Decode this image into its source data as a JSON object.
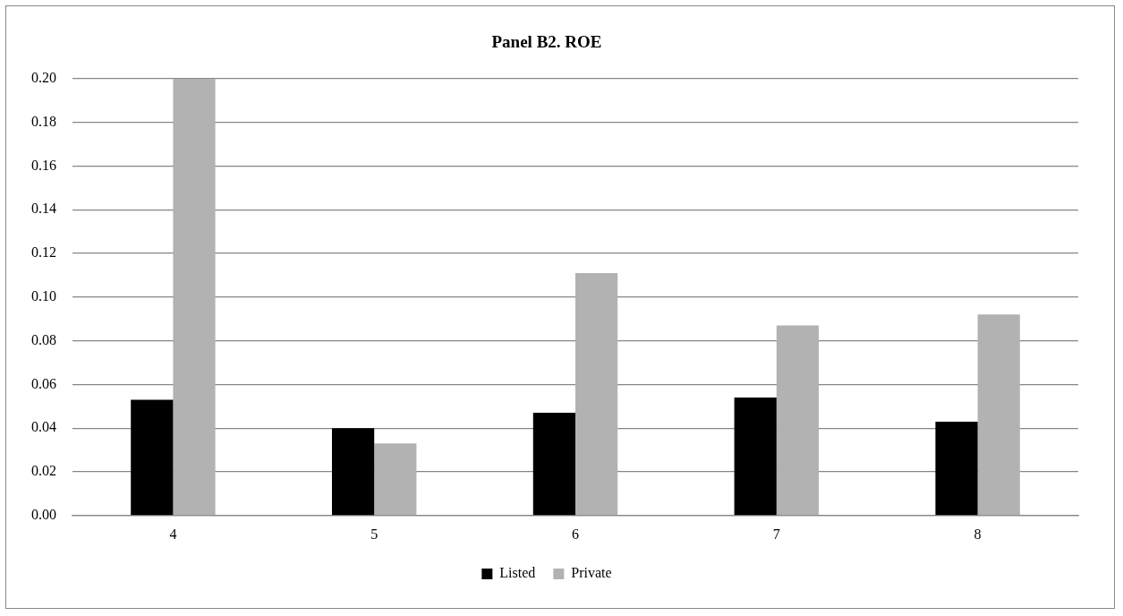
{
  "chart_data": {
    "type": "bar",
    "title": "Panel B2. ROE",
    "categories": [
      "4",
      "5",
      "6",
      "7",
      "8"
    ],
    "series": [
      {
        "name": "Listed",
        "color": "#000000",
        "values": [
          0.053,
          0.04,
          0.047,
          0.054,
          0.043
        ]
      },
      {
        "name": "Private",
        "color": "#b2b2b2",
        "values": [
          0.2,
          0.033,
          0.111,
          0.087,
          0.092
        ]
      }
    ],
    "ylim": [
      0,
      0.2
    ],
    "yticks": [
      {
        "value": 0,
        "label": "0.00"
      },
      0.02,
      0.04,
      0.06,
      0.08,
      {
        "value": 0.1,
        "label": "0.10"
      },
      0.12,
      0.14,
      0.16,
      0.18,
      {
        "value": 0.2,
        "label": "0.20"
      }
    ],
    "grid": "y",
    "legend": "bottom"
  }
}
